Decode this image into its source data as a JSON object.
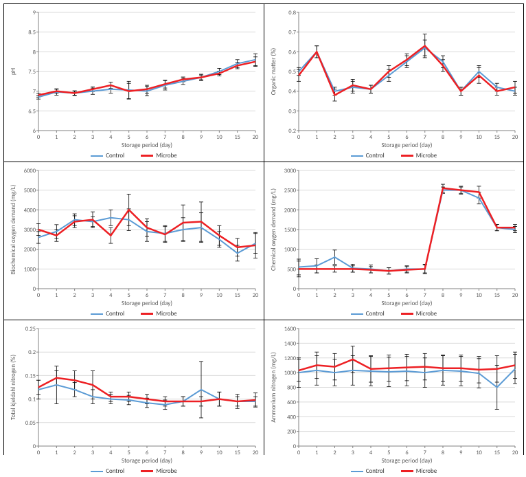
{
  "global": {
    "x_axis_title": "Storage period (day)",
    "x_categories": [
      "0",
      "1",
      "2",
      "3",
      "4",
      "5",
      "6",
      "7",
      "8",
      "9",
      "10",
      "15",
      "20"
    ],
    "series_names": [
      "Control",
      "Microbe"
    ],
    "colors": {
      "control": "#5b9bd5",
      "microbe": "#ed2024",
      "gridline": "#d9d9d9",
      "axis": "#808080",
      "error_bar": "#000000",
      "background": "#ffffff",
      "text": "#595959"
    },
    "line_width_control": 2,
    "line_width_microbe": 2.5,
    "font_family": "Calibri, Arial, sans-serif",
    "tick_fontsize": 8.5,
    "label_fontsize": 9
  },
  "charts": [
    {
      "id": "ph",
      "y_label": "pH",
      "ylim": [
        6,
        9
      ],
      "ytick_step": 0.5,
      "control": [
        6.85,
        6.98,
        6.95,
        7.0,
        7.05,
        7.03,
        7.0,
        7.15,
        7.25,
        7.35,
        7.5,
        7.7,
        7.8
      ],
      "microbe": [
        6.9,
        7.0,
        6.95,
        7.05,
        7.15,
        7.0,
        7.05,
        7.18,
        7.3,
        7.35,
        7.45,
        7.65,
        7.75
      ],
      "err_control": [
        0.05,
        0.08,
        0.06,
        0.08,
        0.1,
        0.22,
        0.12,
        0.12,
        0.08,
        0.08,
        0.08,
        0.1,
        0.15
      ],
      "err_microbe": [
        0.05,
        0.05,
        0.05,
        0.06,
        0.08,
        0.2,
        0.1,
        0.1,
        0.06,
        0.06,
        0.06,
        0.08,
        0.12
      ]
    },
    {
      "id": "organic-matter",
      "y_label": "Organic matter (%)",
      "ylim": [
        0.2,
        0.8
      ],
      "ytick_step": 0.1,
      "control": [
        0.5,
        0.6,
        0.4,
        0.42,
        0.41,
        0.48,
        0.55,
        0.62,
        0.55,
        0.4,
        0.5,
        0.42,
        0.4
      ],
      "microbe": [
        0.48,
        0.6,
        0.38,
        0.43,
        0.41,
        0.5,
        0.56,
        0.63,
        0.53,
        0.4,
        0.48,
        0.4,
        0.42
      ],
      "err_control": [
        0.02,
        0.03,
        0.02,
        0.03,
        0.02,
        0.03,
        0.03,
        0.04,
        0.03,
        0.02,
        0.03,
        0.02,
        0.02
      ],
      "err_microbe": [
        0.03,
        0.03,
        0.03,
        0.03,
        0.02,
        0.03,
        0.03,
        0.06,
        0.03,
        0.02,
        0.04,
        0.02,
        0.03
      ]
    },
    {
      "id": "bod",
      "y_label": "Biochemical oxygen demand (mg/L)",
      "ylim": [
        0,
        6000
      ],
      "ytick_step": 1000,
      "control": [
        2600,
        2900,
        3500,
        3400,
        3600,
        3500,
        2900,
        2800,
        3000,
        3100,
        2500,
        1800,
        2300
      ],
      "microbe": [
        3000,
        2700,
        3400,
        3500,
        2700,
        4000,
        3100,
        2750,
        3350,
        3400,
        2700,
        2100,
        2200
      ],
      "err_control": [
        300,
        350,
        300,
        250,
        400,
        550,
        500,
        400,
        600,
        750,
        400,
        400,
        500
      ],
      "err_microbe": [
        300,
        300,
        300,
        400,
        400,
        800,
        450,
        400,
        900,
        1000,
        500,
        450,
        650
      ]
    },
    {
      "id": "cod",
      "y_label": "Chemical oxygen demand (mg/L)",
      "ylim": [
        0,
        3000
      ],
      "ytick_step": 500,
      "control": [
        550,
        580,
        800,
        520,
        500,
        450,
        500,
        500,
        2500,
        2500,
        2300,
        1550,
        1500
      ],
      "microbe": [
        500,
        500,
        500,
        500,
        480,
        450,
        480,
        500,
        2550,
        2500,
        2450,
        1550,
        1550
      ],
      "err_control": [
        200,
        180,
        180,
        100,
        100,
        80,
        80,
        120,
        80,
        80,
        150,
        80,
        80
      ],
      "err_microbe": [
        200,
        100,
        80,
        80,
        80,
        80,
        80,
        100,
        100,
        100,
        150,
        80,
        80
      ]
    },
    {
      "id": "tkn",
      "y_label": "Total kjeldahl nitrogen (%)",
      "ylim": [
        0,
        0.25
      ],
      "ytick_step": 0.05,
      "control": [
        0.12,
        0.13,
        0.12,
        0.105,
        0.1,
        0.098,
        0.092,
        0.088,
        0.095,
        0.12,
        0.1,
        0.095,
        0.095
      ],
      "microbe": [
        0.125,
        0.145,
        0.14,
        0.13,
        0.105,
        0.105,
        0.1,
        0.095,
        0.095,
        0.095,
        0.1,
        0.095,
        0.098
      ],
      "err_control": [
        0.02,
        0.04,
        0.015,
        0.015,
        0.01,
        0.01,
        0.01,
        0.01,
        0.01,
        0.06,
        0.015,
        0.01,
        0.01
      ],
      "err_microbe": [
        0.015,
        0.015,
        0.02,
        0.03,
        0.01,
        0.01,
        0.01,
        0.01,
        0.01,
        0.01,
        0.015,
        0.015,
        0.015
      ]
    },
    {
      "id": "ammonium",
      "y_label": "Ammonium nitrogen (mg/L)",
      "ylim": [
        0,
        1600
      ],
      "ytick_step": 200,
      "control": [
        1000,
        1030,
        1000,
        1030,
        1020,
        1010,
        1020,
        1000,
        1030,
        1020,
        990,
        800,
        1050
      ],
      "microbe": [
        1030,
        1100,
        1080,
        1180,
        1050,
        1060,
        1070,
        1080,
        1060,
        1060,
        1040,
        1050,
        1100
      ],
      "err_control": [
        200,
        200,
        180,
        200,
        200,
        200,
        200,
        200,
        200,
        200,
        200,
        300,
        200
      ],
      "err_microbe": [
        150,
        180,
        180,
        180,
        180,
        180,
        180,
        180,
        180,
        180,
        180,
        180,
        180
      ]
    }
  ]
}
